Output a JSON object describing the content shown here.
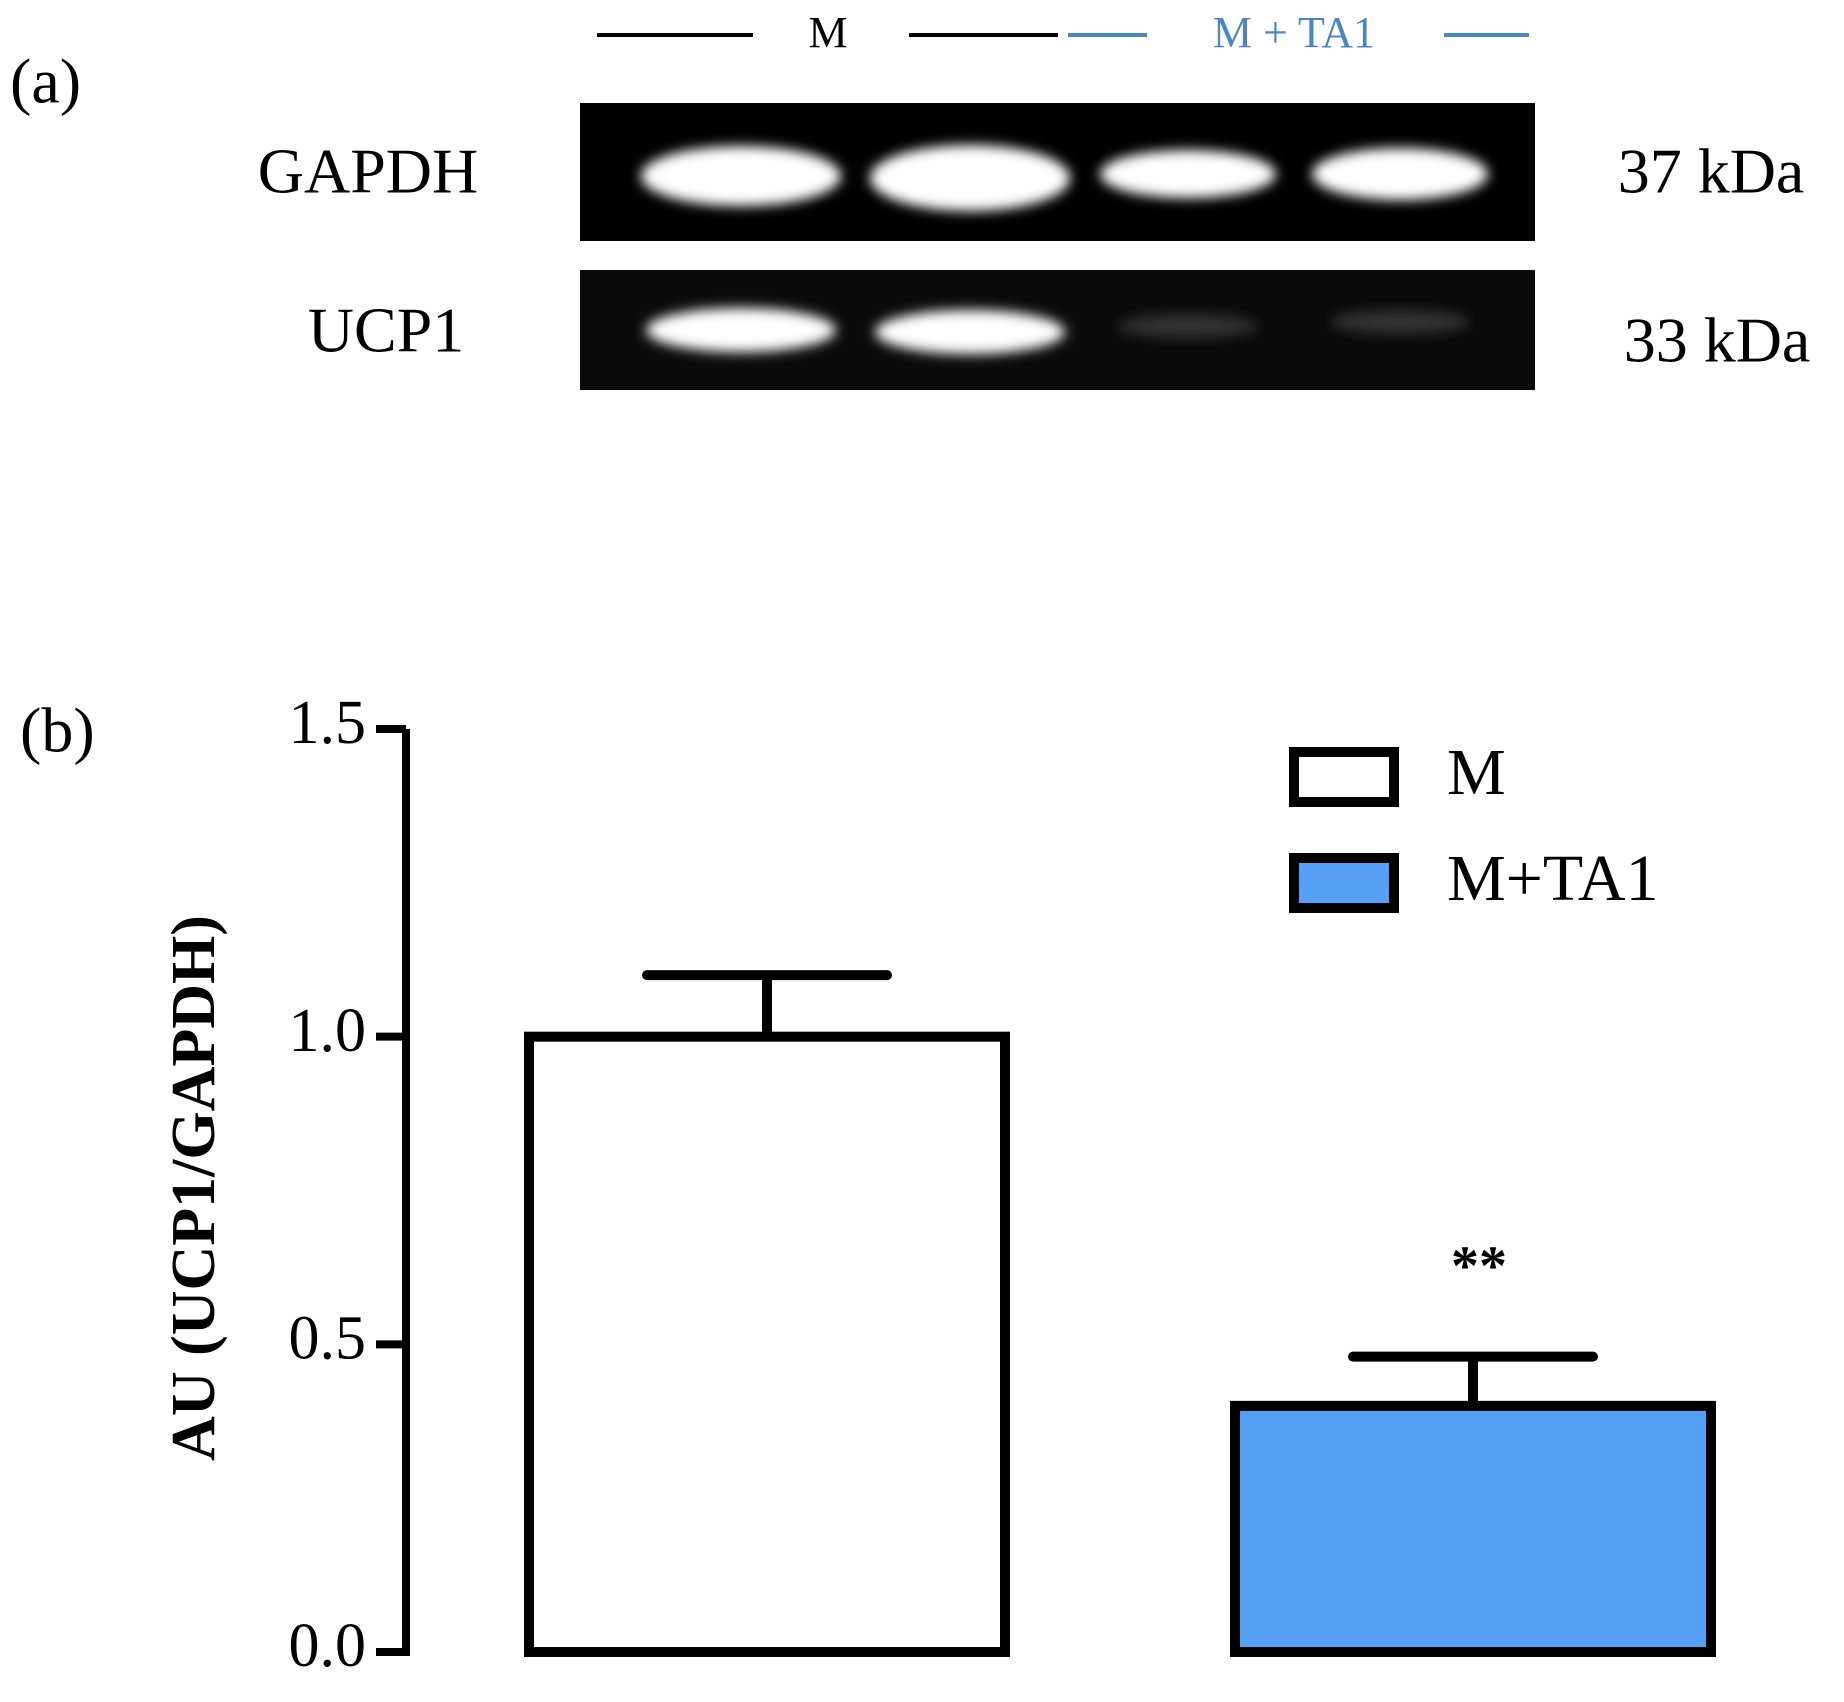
{
  "panel_a": {
    "label": "(a)",
    "group_1": "M",
    "group_2": "M + TA1",
    "row_1": "GAPDH",
    "row_2": "UCP1",
    "size_1": "37 kDa",
    "size_2": "33 kDa"
  },
  "chart_data": {
    "type": "bar",
    "panel_label": "(b)",
    "y_label": "AU (UCP1/GAPDH)",
    "series": [
      {
        "name": "M",
        "color": "#ffffff",
        "values": [
          1.0
        ],
        "errors": [
          0.1
        ]
      },
      {
        "name": "M+TA1",
        "color": "#559ff5",
        "values": [
          0.4
        ],
        "errors": [
          0.08
        ],
        "annotation": "**"
      }
    ],
    "ylim": [
      0,
      1.5
    ],
    "yticks": [
      {
        "value": 0,
        "label": "0.0"
      },
      0.5,
      {
        "value": 1,
        "label": "1.0"
      },
      1.5
    ],
    "grid": false
  }
}
